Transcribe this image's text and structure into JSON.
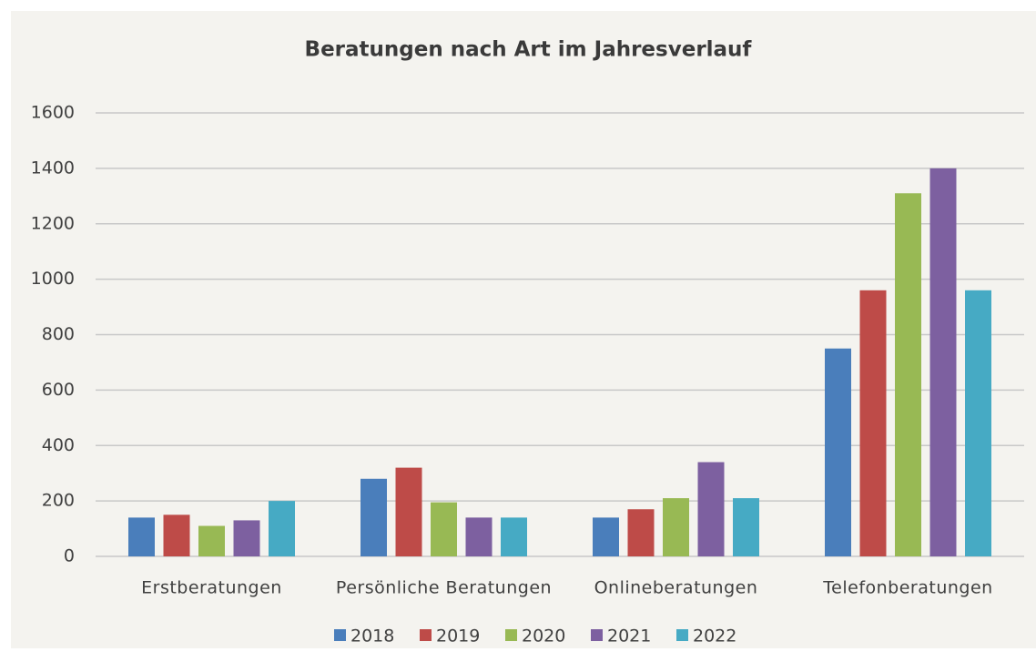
{
  "chart_data": {
    "type": "bar",
    "title": "Beratungen nach Art im Jahresverlauf",
    "categories": [
      "Erstberatungen",
      "Persönliche Beratungen",
      "Onlineberatungen",
      "Telefonberatungen"
    ],
    "series": [
      {
        "name": "2018",
        "color": "#4a7ebb",
        "values": [
          140,
          280,
          140,
          750
        ]
      },
      {
        "name": "2019",
        "color": "#be4b48",
        "values": [
          150,
          320,
          170,
          960
        ]
      },
      {
        "name": "2020",
        "color": "#98b954",
        "values": [
          110,
          195,
          210,
          1310
        ]
      },
      {
        "name": "2021",
        "color": "#7d60a0",
        "values": [
          130,
          140,
          340,
          1400
        ]
      },
      {
        "name": "2022",
        "color": "#46aac4",
        "values": [
          200,
          140,
          210,
          960
        ]
      }
    ],
    "ylim": [
      0,
      1600
    ],
    "yticks": [
      0,
      200,
      400,
      600,
      800,
      1000,
      1200,
      1400,
      1600
    ],
    "grid": true,
    "legend": "bottom"
  }
}
